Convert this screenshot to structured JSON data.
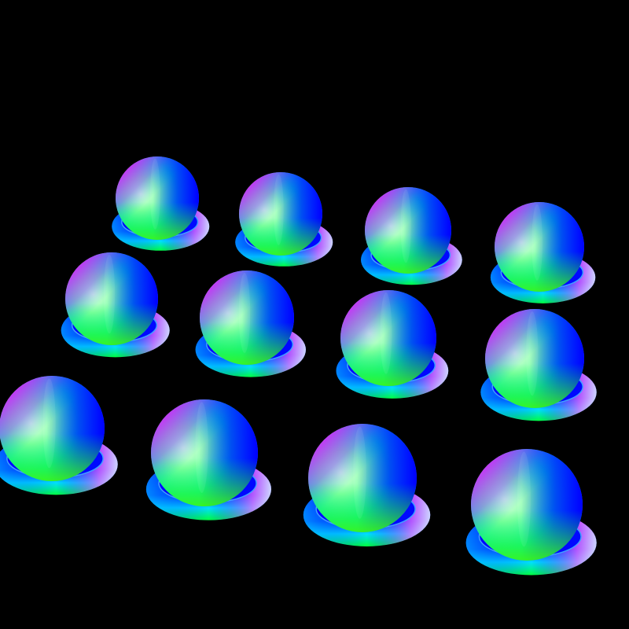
{
  "scene": {
    "background": "#000000",
    "object_kind": "sphere-on-ring",
    "rows": 3,
    "columns": 4,
    "palette": {
      "blue": "#0a00ff",
      "cyan": "#00d8ff",
      "green": "#00ff40",
      "magenta": "#ff00ff",
      "light": "#d8ffd8",
      "yellow": "#c8ff00"
    }
  }
}
